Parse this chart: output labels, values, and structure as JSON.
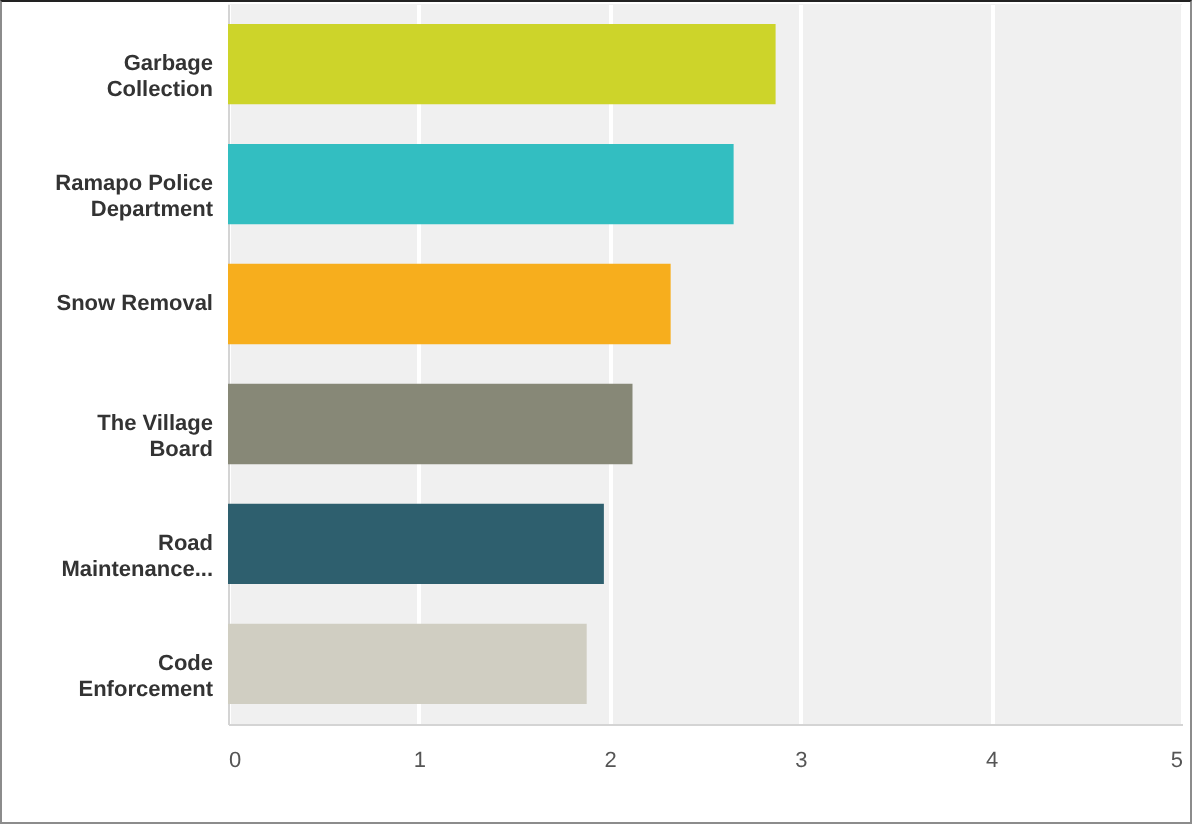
{
  "chart_data": {
    "type": "bar",
    "orientation": "horizontal",
    "categories": [
      "Garbage Collection",
      "Ramapo Police Department",
      "Snow Removal",
      "The Village Board",
      "Road Maintenance...",
      "Code Enforcement"
    ],
    "values": [
      2.87,
      2.65,
      2.32,
      2.12,
      1.97,
      1.88
    ],
    "colors": [
      "#cdd42a",
      "#33bec1",
      "#f7ae1d",
      "#878877",
      "#2e5f6e",
      "#d0cec2"
    ],
    "xlim": [
      0,
      5
    ],
    "xticks": [
      0,
      1,
      2,
      3,
      4,
      5
    ],
    "grid": "x"
  }
}
